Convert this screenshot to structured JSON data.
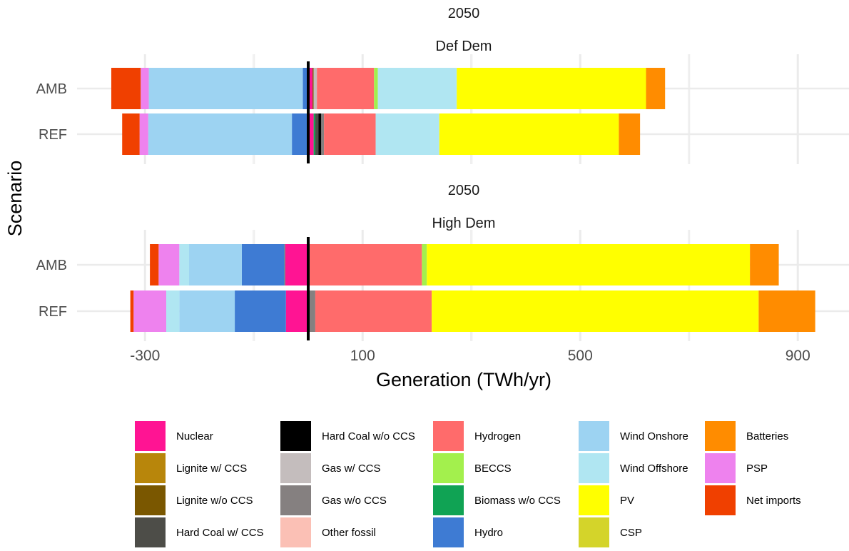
{
  "chart_data": {
    "type": "bar",
    "orientation": "horizontal",
    "stacked": true,
    "xlabel": "Generation (TWh/yr)",
    "ylabel": "Scenario",
    "xlim": [
      -360,
      990
    ],
    "x_ticks": [
      -300,
      100,
      500,
      900
    ],
    "x_ticks_labels": [
      "-300",
      "100",
      "500",
      "900"
    ],
    "zero_line": 0,
    "grid": true,
    "legend_position": "bottom",
    "legend": [
      {
        "name": "Nuclear",
        "color": "#FF1493"
      },
      {
        "name": "Lignite w/ CCS",
        "color": "#B8860B"
      },
      {
        "name": "Lignite w/o CCS",
        "color": "#7A5700"
      },
      {
        "name": "Hard Coal w/ CCS",
        "color": "#4D4D48"
      },
      {
        "name": "Hard Coal w/o CCS",
        "color": "#000000"
      },
      {
        "name": "Gas w/ CCS",
        "color": "#C4BDBD"
      },
      {
        "name": "Gas w/o CCS",
        "color": "#858080"
      },
      {
        "name": "Other fossil",
        "color": "#FBC0B5"
      },
      {
        "name": "Hydrogen",
        "color": "#FF6B6B"
      },
      {
        "name": "BECCS",
        "color": "#A3F04D"
      },
      {
        "name": "Biomass w/o CCS",
        "color": "#10A354"
      },
      {
        "name": "Hydro",
        "color": "#3E7BD3"
      },
      {
        "name": "Wind Onshore",
        "color": "#9DD3F2"
      },
      {
        "name": "Wind Offshore",
        "color": "#B0E6F2"
      },
      {
        "name": "PV",
        "color": "#FFFF00"
      },
      {
        "name": "CSP",
        "color": "#D4D42A"
      },
      {
        "name": "Batteries",
        "color": "#FF8C00"
      },
      {
        "name": "PSP",
        "color": "#EE82EE"
      },
      {
        "name": "Net imports",
        "color": "#F04000"
      }
    ],
    "panels": [
      {
        "year": "2050",
        "demand": "Def Dem",
        "bars": [
          {
            "scenario": "AMB",
            "positive": [
              {
                "tech": "Nuclear",
                "value": 8
              },
              {
                "tech": "Lignite w/o CCS",
                "value": 2
              },
              {
                "tech": "Gas w/ CCS",
                "value": 6
              },
              {
                "tech": "Hydrogen",
                "value": 105
              },
              {
                "tech": "BECCS",
                "value": 7
              },
              {
                "tech": "Wind Offshore",
                "value": 145
              },
              {
                "tech": "PV",
                "value": 348
              },
              {
                "tech": "Batteries",
                "value": 35
              }
            ],
            "negative": [
              {
                "tech": "Hydro",
                "value": -10
              },
              {
                "tech": "Wind Onshore",
                "value": -283
              },
              {
                "tech": "PSP",
                "value": -15
              },
              {
                "tech": "Net imports",
                "value": -54
              }
            ]
          },
          {
            "scenario": "REF",
            "positive": [
              {
                "tech": "Nuclear",
                "value": 10
              },
              {
                "tech": "Biomass w/o CCS",
                "value": 3
              },
              {
                "tech": "Hard Coal w/ CCS",
                "value": 6
              },
              {
                "tech": "Hard Coal w/o CCS",
                "value": 5
              },
              {
                "tech": "Gas w/o CCS",
                "value": 5
              },
              {
                "tech": "Hydrogen",
                "value": 95
              },
              {
                "tech": "Wind Offshore",
                "value": 117
              },
              {
                "tech": "PV",
                "value": 330
              },
              {
                "tech": "Batteries",
                "value": 39
              }
            ],
            "negative": [
              {
                "tech": "Hydro",
                "value": -30
              },
              {
                "tech": "Wind Onshore",
                "value": -264
              },
              {
                "tech": "PSP",
                "value": -16
              },
              {
                "tech": "Net imports",
                "value": -32
              }
            ]
          }
        ]
      },
      {
        "year": "2050",
        "demand": "High Dem",
        "bars": [
          {
            "scenario": "AMB",
            "positive": [
              {
                "tech": "Nuclear",
                "value": 2
              },
              {
                "tech": "Hydrogen",
                "value": 207
              },
              {
                "tech": "BECCS",
                "value": 9
              },
              {
                "tech": "PV",
                "value": 594
              },
              {
                "tech": "Batteries",
                "value": 53
              }
            ],
            "negative": [
              {
                "tech": "Nuclear",
                "value": -42
              },
              {
                "tech": "Gas w/o CCS",
                "value": -2
              },
              {
                "tech": "Hydro",
                "value": -78
              },
              {
                "tech": "Wind Onshore",
                "value": -97
              },
              {
                "tech": "Wind Offshore",
                "value": -18
              },
              {
                "tech": "PSP",
                "value": -38
              },
              {
                "tech": "Net imports",
                "value": -16
              }
            ]
          },
          {
            "scenario": "REF",
            "positive": [
              {
                "tech": "Nuclear",
                "value": 1
              },
              {
                "tech": "Gas w/o CCS",
                "value": 12
              },
              {
                "tech": "Hydrogen",
                "value": 214
              },
              {
                "tech": "PV",
                "value": 601
              },
              {
                "tech": "Batteries",
                "value": 104
              }
            ],
            "negative": [
              {
                "tech": "Nuclear",
                "value": -41
              },
              {
                "tech": "Hydro",
                "value": -94
              },
              {
                "tech": "Wind Onshore",
                "value": -102
              },
              {
                "tech": "Wind Offshore",
                "value": -24
              },
              {
                "tech": "PSP",
                "value": -60
              },
              {
                "tech": "Net imports",
                "value": -6
              }
            ]
          }
        ]
      }
    ]
  }
}
